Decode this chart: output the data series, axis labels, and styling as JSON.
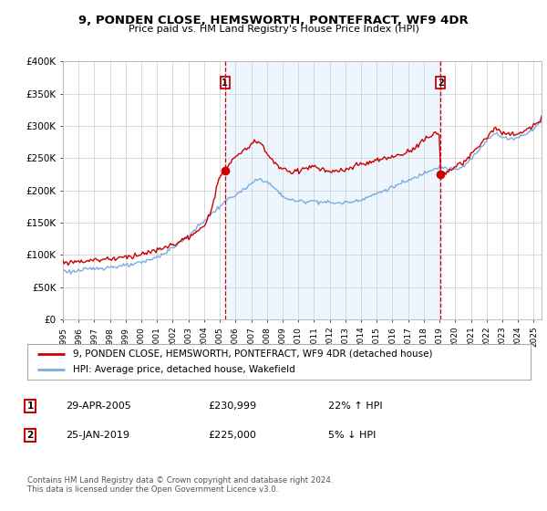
{
  "title": "9, PONDEN CLOSE, HEMSWORTH, PONTEFRACT, WF9 4DR",
  "subtitle": "Price paid vs. HM Land Registry's House Price Index (HPI)",
  "legend_line1": "9, PONDEN CLOSE, HEMSWORTH, PONTEFRACT, WF9 4DR (detached house)",
  "legend_line2": "HPI: Average price, detached house, Wakefield",
  "annotation1_date": "29-APR-2005",
  "annotation1_price": "£230,999",
  "annotation1_hpi": "22% ↑ HPI",
  "annotation2_date": "25-JAN-2019",
  "annotation2_price": "£225,000",
  "annotation2_hpi": "5% ↓ HPI",
  "footnote": "Contains HM Land Registry data © Crown copyright and database right 2024.\nThis data is licensed under the Open Government Licence v3.0.",
  "price_paid_color": "#cc0000",
  "hpi_color": "#7aade0",
  "vline_color": "#cc0000",
  "shade_color": "#ddeeff",
  "background_color": "#ffffff",
  "grid_color": "#cccccc",
  "ylim": [
    0,
    400000
  ],
  "yticks": [
    0,
    50000,
    100000,
    150000,
    200000,
    250000,
    300000,
    350000,
    400000
  ],
  "sale1_x": 2005.33,
  "sale1_y": 230999,
  "sale2_x": 2019.07,
  "sale2_y": 225000,
  "xlim_left": 1995.0,
  "xlim_right": 2025.5
}
